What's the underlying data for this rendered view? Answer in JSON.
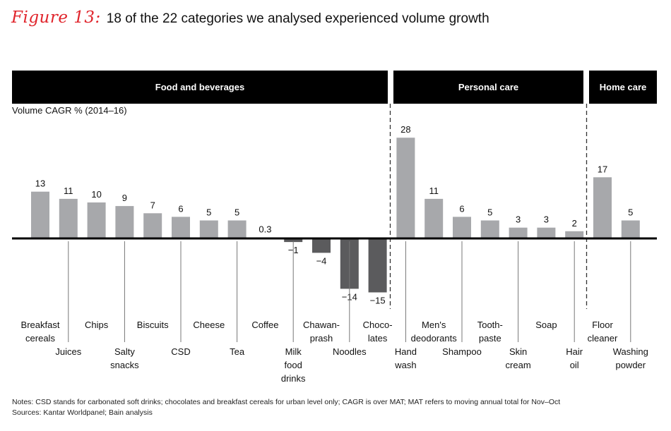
{
  "title": {
    "figure_label": "Figure 13:",
    "text": "18 of the 22 categories we analysed experienced volume growth"
  },
  "colors": {
    "figure_label": "#e0242b",
    "positive_bar": "#a7a8ab",
    "negative_bar": "#5b5b5d",
    "axis": "#000000",
    "header_bg": "#000000",
    "header_text": "#ffffff"
  },
  "notes": {
    "line1": "Notes: CSD stands for carbonated soft drinks; chocolates and breakfast cereals for urban level only; CAGR is over MAT; MAT refers to moving annual total for Nov–Oct",
    "line2": "Sources: Kantar Worldpanel; Bain analysis"
  },
  "chart_data": {
    "type": "bar",
    "title": "18 of the 22 categories we analysed experienced volume growth",
    "xlabel": "",
    "ylabel": "Volume CAGR % (2014–16)",
    "ylim": [
      -15,
      28
    ],
    "grid": false,
    "legend": "none",
    "segments": [
      {
        "name": "Food and beverages",
        "first": 0,
        "last": 12
      },
      {
        "name": "Personal care",
        "first": 13,
        "last": 19
      },
      {
        "name": "Home care",
        "first": 20,
        "last": 21
      }
    ],
    "categories": [
      [
        "Breakfast",
        "cereals"
      ],
      [
        "Juices"
      ],
      [
        "Chips"
      ],
      [
        "Salty",
        "snacks"
      ],
      [
        "Biscuits"
      ],
      [
        "CSD"
      ],
      [
        "Cheese"
      ],
      [
        "Tea"
      ],
      [
        "Coffee"
      ],
      [
        "Milk",
        "food",
        "drinks"
      ],
      [
        "Chawan-",
        "prash"
      ],
      [
        "Noodles"
      ],
      [
        "Choco-",
        "lates"
      ],
      [
        "Hand",
        "wash"
      ],
      [
        "Men's",
        "deodorants"
      ],
      [
        "Shampoo"
      ],
      [
        "Tooth-",
        "paste"
      ],
      [
        "Skin",
        "cream"
      ],
      [
        "Soap"
      ],
      [
        "Hair",
        "oil"
      ],
      [
        "Floor",
        "cleaner"
      ],
      [
        "Washing",
        "powder"
      ]
    ],
    "values": [
      13,
      11,
      10,
      9,
      7,
      6,
      5,
      5,
      0.3,
      -1,
      -4,
      -14,
      -15,
      28,
      11,
      6,
      5,
      3,
      3,
      2,
      17,
      5
    ],
    "value_labels": [
      "13",
      "11",
      "10",
      "9",
      "7",
      "6",
      "5",
      "5",
      "0.3",
      "−1",
      "−4",
      "−14",
      "−15",
      "28",
      "11",
      "6",
      "5",
      "3",
      "3",
      "2",
      "17",
      "5"
    ]
  }
}
